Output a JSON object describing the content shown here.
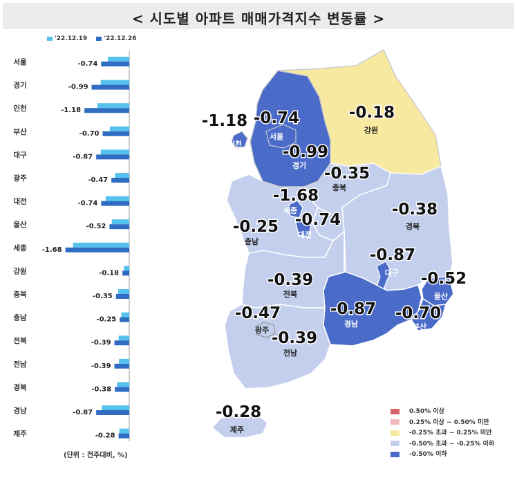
{
  "title": "< 시도별 아파트 매매가격지수 변동률 >",
  "note": "(단위 : 전주대비, %)",
  "colors": {
    "prev_series": "#55c2ee",
    "curr_series": "#2f6cc2",
    "yellow": "#f8e9a1",
    "light": "#c3cfec",
    "dark": "#4b6bc9"
  },
  "chart_data": {
    "type": "bar",
    "orientation": "horizontal",
    "categories": [
      "서울",
      "경기",
      "인천",
      "부산",
      "대구",
      "광주",
      "대전",
      "울산",
      "세종",
      "강원",
      "충북",
      "충남",
      "전북",
      "전남",
      "경북",
      "경남",
      "제주"
    ],
    "series": [
      {
        "name": "'22.12.19",
        "color": "#55c2ee",
        "values": [
          -0.56,
          -0.75,
          -0.84,
          -0.51,
          -0.75,
          -0.37,
          -0.62,
          -0.46,
          -1.48,
          -0.14,
          -0.29,
          -0.21,
          -0.28,
          -0.27,
          -0.32,
          -0.72,
          -0.26
        ]
      },
      {
        "name": "'22.12.26",
        "color": "#2f6cc2",
        "values": [
          -0.74,
          -0.99,
          -1.18,
          -0.7,
          -0.87,
          -0.47,
          -0.74,
          -0.52,
          -1.68,
          -0.18,
          -0.35,
          -0.25,
          -0.39,
          -0.39,
          -0.38,
          -0.87,
          -0.28
        ]
      }
    ],
    "data_labels": [
      "-0.74",
      "-0.99",
      "-1.18",
      "-0.70",
      "-0.87",
      "-0.47",
      "-0.74",
      "-0.52",
      "-1.68",
      "-0.18",
      "-0.35",
      "-0.25",
      "-0.39",
      "-0.39",
      "-0.38",
      "-0.87",
      "-0.28"
    ]
  },
  "map": {
    "labels": [
      {
        "region": "인천",
        "value": "-1.18"
      },
      {
        "region": "서울",
        "value": "-0.74"
      },
      {
        "region": "경기",
        "value": "-0.99"
      },
      {
        "region": "강원",
        "value": "-0.18"
      },
      {
        "region": "충북",
        "value": "-0.35"
      },
      {
        "region": "세종",
        "value": "-1.68"
      },
      {
        "region": "충남",
        "value": "-0.25"
      },
      {
        "region": "대전",
        "value": "-0.74"
      },
      {
        "region": "경북",
        "value": "-0.38"
      },
      {
        "region": "대구",
        "value": "-0.87"
      },
      {
        "region": "울산",
        "value": "-0.52"
      },
      {
        "region": "전북",
        "value": "-0.39"
      },
      {
        "region": "광주",
        "value": "-0.47"
      },
      {
        "region": "전남",
        "value": "-0.39"
      },
      {
        "region": "경남",
        "value": "-0.87"
      },
      {
        "region": "부산",
        "value": "-0.70"
      },
      {
        "region": "제주",
        "value": "-0.28"
      }
    ],
    "legend": [
      {
        "label": "0.50% 이상",
        "color": "#d9636a"
      },
      {
        "label": "0.25% 이상 ~ 0.50% 미만",
        "color": "#f2b8bd"
      },
      {
        "label": "-0.25% 초과 ~ 0.25% 미만",
        "color": "#f8e9a1"
      },
      {
        "label": "-0.50% 초과 ~ -0.25% 이하",
        "color": "#c3cfec"
      },
      {
        "label": "-0.50% 이하",
        "color": "#4b6bc9"
      }
    ]
  }
}
